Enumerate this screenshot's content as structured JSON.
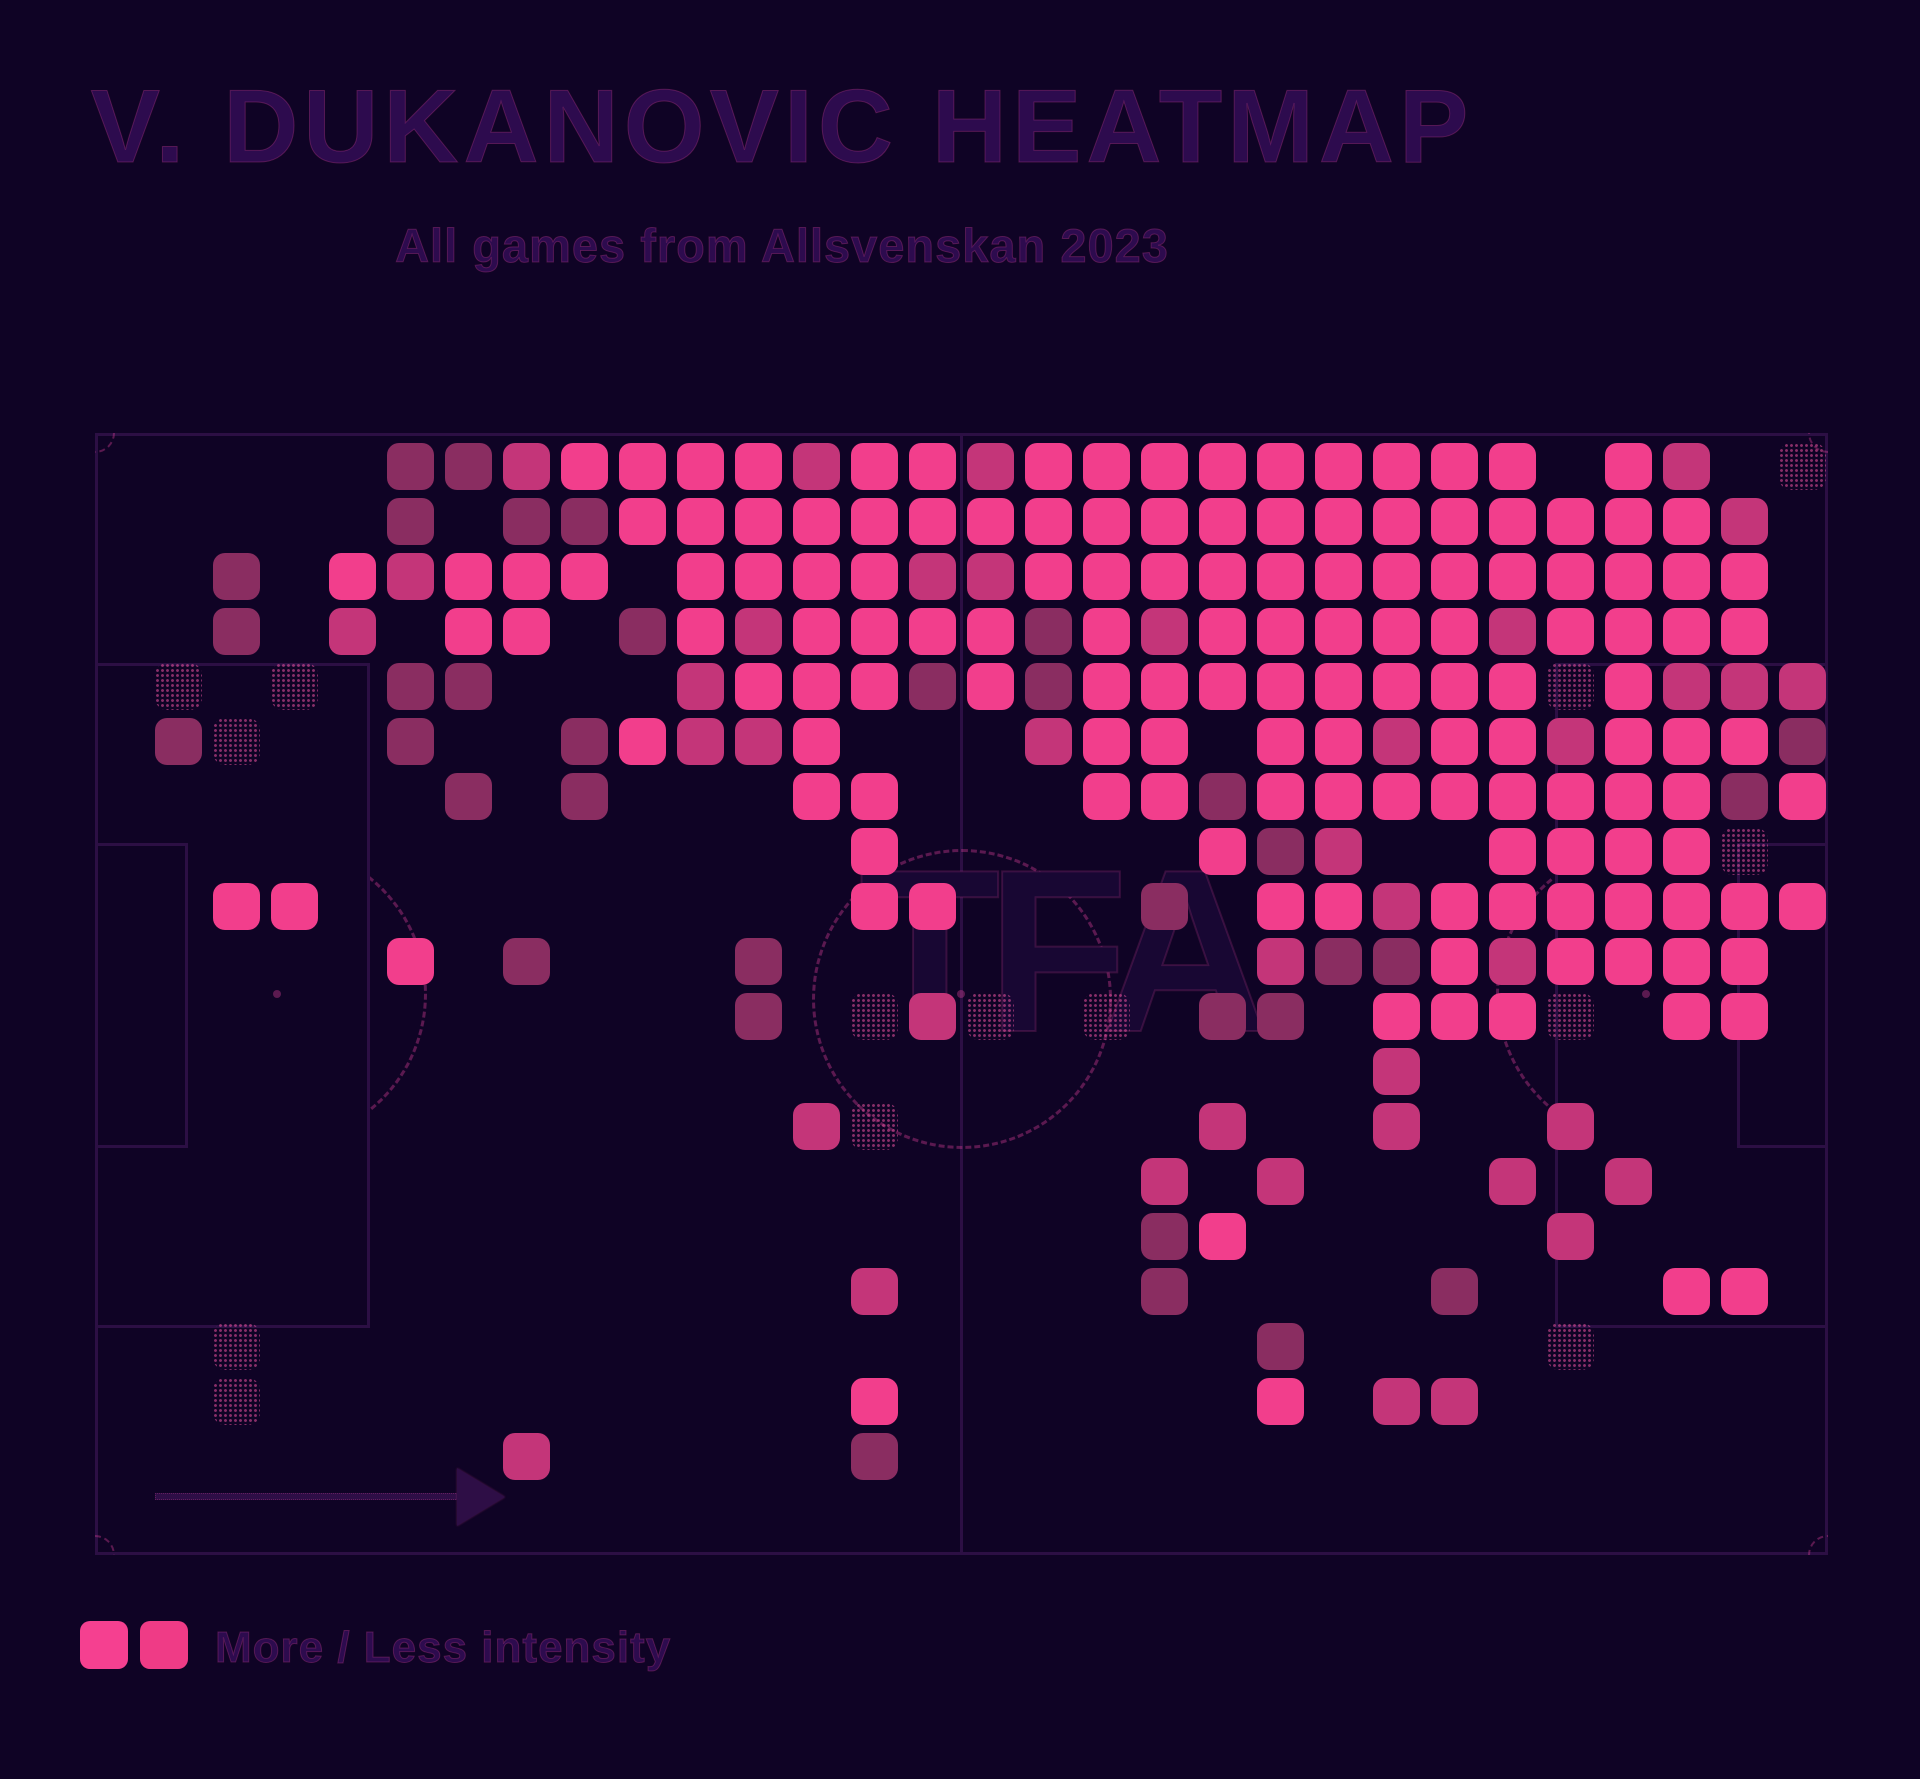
{
  "title": "V. DUKANOVIC HEATMAP",
  "subtitle": "All games from Allsvenskan 2023",
  "watermark": "TFA",
  "legend": {
    "label": "More / Less intensity"
  },
  "colors": {
    "background": "#0f0325",
    "pitch_line": "#2c0f44",
    "intensity_high": "#f23e8c",
    "intensity_medium": "#c43579",
    "intensity_low": "#8a2d61",
    "intensity_faint_dots": "#ec54a0",
    "text": "#2d0b4e"
  },
  "chart_data": {
    "type": "heatmap",
    "title": "V. DUKANOVIC HEATMAP",
    "subtitle": "All games from Allsvenskan 2023",
    "description": "Player activity heatmap drawn over a football pitch; attack direction left to right (arrow bottom-left). Intensity levels: 0=none, 1=faint dotted, 2=low, 3=medium, 4=high.",
    "legend_entries": [
      "More intensity",
      "Less intensity"
    ],
    "grid_cols": 30,
    "grid_rows": 20,
    "intensity_levels": [
      0,
      1,
      2,
      3,
      4
    ],
    "rows": [
      "000002234444344344444444404301",
      "000002022444444444444444444430",
      "002043444044443344444444444440",
      "002030440243444424344444344440",
      "010102200034442424444444414333",
      "021002002433400034404434434442",
      "000000202000440004424444444424",
      "000000000000040000042300444410",
      "004400000000044000204434444444",
      "000004020002000000003224344440",
      "000000000002013101022044410440",
      "000000000000000000000030000000",
      "000000000000310000030030030000",
      "000000000000000000303000303000",
      "000000000000000000240000030000",
      "000000000000030000200002000440",
      "001000000000000000002000010000",
      "001000000000040000004033000000",
      "000000030000020000000000000000",
      "000000000000000000000000000000"
    ]
  }
}
